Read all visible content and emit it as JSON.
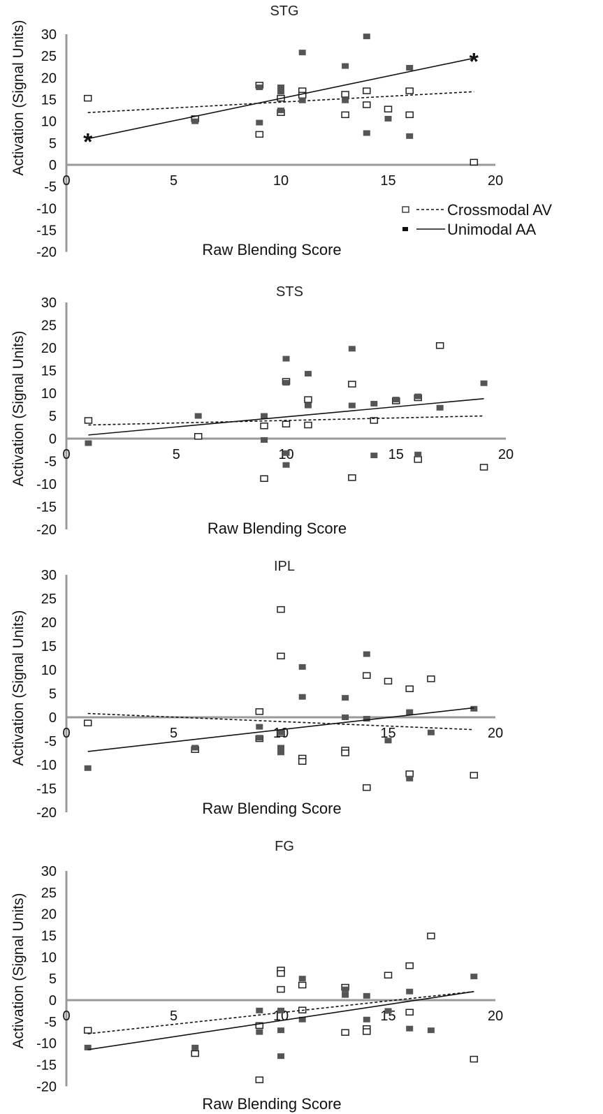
{
  "colors": {
    "axis": "#999999",
    "filled_marker": "#555555",
    "open_marker_stroke": "#222222",
    "line": "#111111"
  },
  "chart_data": [
    {
      "type": "scatter",
      "title": "STG",
      "xlabel": "Raw Blending Score",
      "ylabel": "Activation (Signal Units)",
      "xlim": [
        0,
        20
      ],
      "ylim": [
        -20,
        30
      ],
      "xticks": [
        "0",
        "5",
        "10",
        "15",
        "20"
      ],
      "yticks": [
        "30",
        "25",
        "20",
        "15",
        "10",
        "5",
        "0",
        "-5",
        "-10",
        "-15",
        "-20"
      ],
      "legend": {
        "placement": "bottom-right",
        "entries": [
          "Crossmodal AV",
          "Unimodal AA"
        ]
      },
      "annotations": [
        {
          "text": "*",
          "x": 1,
          "y": 6.0
        },
        {
          "text": "*",
          "x": 19,
          "y": 24.5
        }
      ],
      "series": [
        {
          "name": "Crossmodal AV",
          "marker": "open-square",
          "line": "dashed",
          "trend": [
            [
              1,
              12.0
            ],
            [
              19,
              16.8
            ]
          ],
          "points": [
            [
              1,
              15.3
            ],
            [
              6,
              10.6
            ],
            [
              9,
              18.3
            ],
            [
              9,
              7.0
            ],
            [
              10,
              15.3
            ],
            [
              10,
              12.0
            ],
            [
              11,
              17.0
            ],
            [
              11,
              16.0
            ],
            [
              13,
              16.2
            ],
            [
              13,
              11.5
            ],
            [
              14,
              17.0
            ],
            [
              14,
              13.8
            ],
            [
              15,
              12.8
            ],
            [
              16,
              17.0
            ],
            [
              16,
              11.5
            ],
            [
              19,
              0.6
            ]
          ]
        },
        {
          "name": "Unimodal AA",
          "marker": "filled-square",
          "line": "solid",
          "trend": [
            [
              1,
              6.0
            ],
            [
              19,
              24.5
            ]
          ],
          "points": [
            [
              6,
              10.0
            ],
            [
              9,
              17.8
            ],
            [
              9,
              9.7
            ],
            [
              10,
              17.8
            ],
            [
              10,
              16.8
            ],
            [
              10,
              12.5
            ],
            [
              11,
              25.8
            ],
            [
              11,
              14.8
            ],
            [
              13,
              22.7
            ],
            [
              13,
              14.8
            ],
            [
              14,
              29.5
            ],
            [
              14,
              7.3
            ],
            [
              15,
              10.6
            ],
            [
              16,
              22.3
            ],
            [
              16,
              6.6
            ]
          ]
        }
      ]
    },
    {
      "type": "scatter",
      "title": "STS",
      "xlabel": "Raw Blending Score",
      "ylabel": "Activation (Signal Units)",
      "xlim": [
        0,
        20
      ],
      "ylim": [
        -20,
        30
      ],
      "xticks": [
        "0",
        "5",
        "10",
        "15",
        "20"
      ],
      "yticks": [
        "30",
        "25",
        "20",
        "15",
        "10",
        "5",
        "0",
        "-5",
        "-10",
        "-15",
        "-20"
      ],
      "series": [
        {
          "name": "Crossmodal AV",
          "marker": "open-square",
          "line": "dashed",
          "trend": [
            [
              1,
              3.0
            ],
            [
              19,
              5.0
            ]
          ],
          "points": [
            [
              1,
              4.0
            ],
            [
              6,
              0.5
            ],
            [
              9,
              2.8
            ],
            [
              9,
              -8.8
            ],
            [
              10,
              12.6
            ],
            [
              10,
              3.2
            ],
            [
              11,
              8.6
            ],
            [
              11,
              3.0
            ],
            [
              13,
              12.0
            ],
            [
              13,
              -8.6
            ],
            [
              14,
              4.0
            ],
            [
              15,
              8.3
            ],
            [
              16,
              9.0
            ],
            [
              16,
              -4.6
            ],
            [
              17,
              20.5
            ],
            [
              19,
              -6.3
            ]
          ]
        },
        {
          "name": "Unimodal AA",
          "marker": "filled-square",
          "line": "solid",
          "trend": [
            [
              1,
              0.8
            ],
            [
              19,
              8.8
            ]
          ],
          "points": [
            [
              1,
              -1.0
            ],
            [
              6,
              5.0
            ],
            [
              9,
              5.0
            ],
            [
              9,
              -0.3
            ],
            [
              10,
              17.6
            ],
            [
              10,
              12.3
            ],
            [
              10,
              -3.2
            ],
            [
              10,
              -5.8
            ],
            [
              11,
              14.3
            ],
            [
              11,
              7.3
            ],
            [
              13,
              19.8
            ],
            [
              13,
              7.3
            ],
            [
              14,
              7.7
            ],
            [
              14,
              -3.7
            ],
            [
              15,
              8.6
            ],
            [
              16,
              9.3
            ],
            [
              16,
              -3.5
            ],
            [
              17,
              6.8
            ],
            [
              19,
              12.2
            ]
          ]
        }
      ]
    },
    {
      "type": "scatter",
      "title": "IPL",
      "xlabel": "Raw Blending Score",
      "ylabel": "Activation (Signal Units)",
      "xlim": [
        0,
        20
      ],
      "ylim": [
        -20,
        30
      ],
      "xticks": [
        "0",
        "5",
        "10",
        "15",
        "20"
      ],
      "yticks": [
        "30",
        "25",
        "20",
        "15",
        "10",
        "5",
        "0",
        "-5",
        "-10",
        "-15",
        "-20"
      ],
      "series": [
        {
          "name": "Crossmodal AV",
          "marker": "open-square",
          "line": "dashed",
          "trend": [
            [
              1,
              0.8
            ],
            [
              19,
              -2.6
            ]
          ],
          "points": [
            [
              1,
              -1.2
            ],
            [
              6,
              -6.8
            ],
            [
              9,
              1.2
            ],
            [
              9,
              -4.5
            ],
            [
              10,
              22.7
            ],
            [
              10,
              12.9
            ],
            [
              10,
              -3.4
            ],
            [
              11,
              -8.6
            ],
            [
              11,
              -9.3
            ],
            [
              13,
              -6.9
            ],
            [
              13,
              -7.5
            ],
            [
              14,
              8.8
            ],
            [
              14,
              -14.8
            ],
            [
              15,
              7.6
            ],
            [
              16,
              6.0
            ],
            [
              16,
              -11.9
            ],
            [
              17,
              8.1
            ],
            [
              19,
              -12.2
            ]
          ]
        },
        {
          "name": "Unimodal AA",
          "marker": "filled-square",
          "line": "solid",
          "trend": [
            [
              1,
              -7.2
            ],
            [
              19,
              2.0
            ]
          ],
          "points": [
            [
              1,
              -10.7
            ],
            [
              6,
              -6.4
            ],
            [
              9,
              -2.0
            ],
            [
              9,
              -4.3
            ],
            [
              10,
              -6.4
            ],
            [
              10,
              -7.4
            ],
            [
              10,
              -3.2
            ],
            [
              11,
              10.6
            ],
            [
              11,
              4.3
            ],
            [
              13,
              4.1
            ],
            [
              13,
              0.0
            ],
            [
              14,
              13.3
            ],
            [
              14,
              -0.3
            ],
            [
              15,
              -4.9
            ],
            [
              16,
              1.1
            ],
            [
              16,
              -12.9
            ],
            [
              17,
              -3.2
            ],
            [
              19,
              1.8
            ]
          ]
        }
      ]
    },
    {
      "type": "scatter",
      "title": "FG",
      "xlabel": "Raw Blending Score",
      "ylabel": "Activation (Signal Units)",
      "xlim": [
        0,
        20
      ],
      "ylim": [
        -20,
        30
      ],
      "xticks": [
        "0",
        "5",
        "10",
        "15",
        "20"
      ],
      "yticks": [
        "30",
        "25",
        "20",
        "15",
        "10",
        "5",
        "0",
        "-5",
        "-10",
        "-15",
        "-20"
      ],
      "series": [
        {
          "name": "Crossmodal AV",
          "marker": "open-square",
          "line": "dashed",
          "trend": [
            [
              1,
              -7.8
            ],
            [
              19,
              2.0
            ]
          ],
          "points": [
            [
              1,
              -7.0
            ],
            [
              6,
              -12.4
            ],
            [
              9,
              -5.9
            ],
            [
              9,
              -18.5
            ],
            [
              10,
              7.0
            ],
            [
              10,
              6.2
            ],
            [
              10,
              2.5
            ],
            [
              11,
              3.5
            ],
            [
              11,
              -2.3
            ],
            [
              13,
              3.0
            ],
            [
              13,
              -7.5
            ],
            [
              14,
              -6.6
            ],
            [
              14,
              -7.3
            ],
            [
              15,
              5.8
            ],
            [
              16,
              8.0
            ],
            [
              16,
              -2.8
            ],
            [
              17,
              14.9
            ],
            [
              19,
              -13.7
            ]
          ]
        },
        {
          "name": "Unimodal AA",
          "marker": "filled-square",
          "line": "solid",
          "trend": [
            [
              1,
              -11.5
            ],
            [
              19,
              2.0
            ]
          ],
          "points": [
            [
              1,
              -11.0
            ],
            [
              6,
              -11.0
            ],
            [
              9,
              -2.4
            ],
            [
              9,
              -7.4
            ],
            [
              10,
              -2.4
            ],
            [
              10,
              -7.0
            ],
            [
              10,
              -13.0
            ],
            [
              11,
              5.0
            ],
            [
              11,
              -4.5
            ],
            [
              13,
              2.5
            ],
            [
              13,
              1.2
            ],
            [
              14,
              1.0
            ],
            [
              14,
              -4.5
            ],
            [
              15,
              -2.5
            ],
            [
              16,
              2.0
            ],
            [
              16,
              -6.6
            ],
            [
              17,
              -7.0
            ],
            [
              19,
              5.5
            ]
          ]
        }
      ]
    }
  ]
}
